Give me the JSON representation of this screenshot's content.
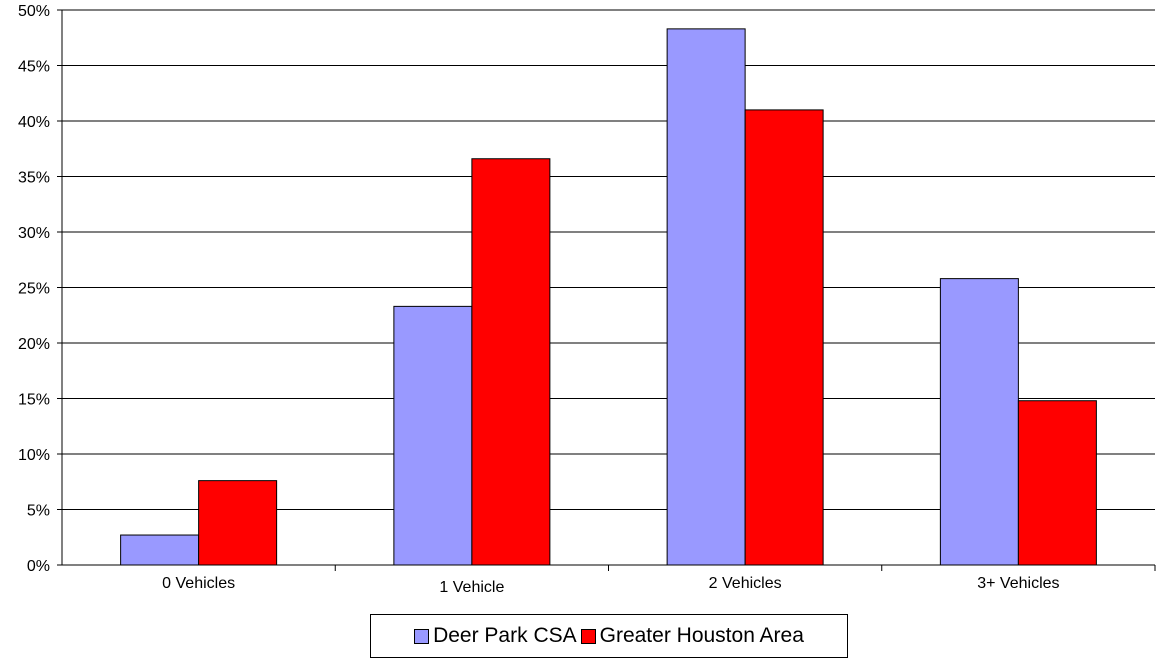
{
  "chart_data": {
    "type": "bar",
    "categories": [
      "0 Vehicles",
      "1 Vehicle",
      "2 Vehicles",
      "3+ Vehicles"
    ],
    "series": [
      {
        "name": "Deer Park CSA",
        "color": "#9999ff",
        "values": [
          2.7,
          23.3,
          48.3,
          25.8
        ]
      },
      {
        "name": "Greater Houston Area",
        "color": "#ff0000",
        "values": [
          7.6,
          36.6,
          41.0,
          14.8
        ]
      }
    ],
    "yticks": [
      "0%",
      "5%",
      "10%",
      "15%",
      "20%",
      "25%",
      "30%",
      "35%",
      "40%",
      "45%",
      "50%"
    ],
    "ylim": [
      0,
      50
    ],
    "grid": true,
    "legend_position": "bottom"
  }
}
